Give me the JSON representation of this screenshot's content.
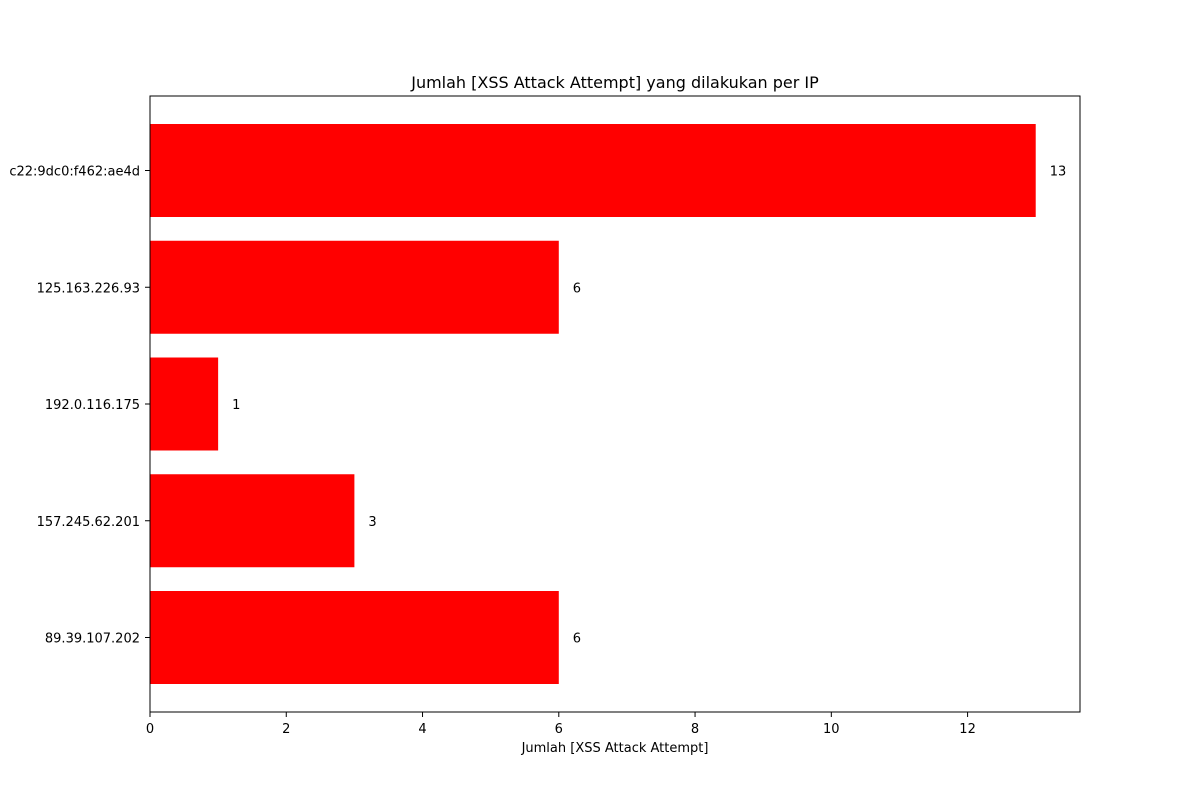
{
  "chart_data": {
    "type": "bar",
    "orientation": "horizontal",
    "title": "Jumlah [XSS Attack Attempt] yang dilakukan per IP",
    "xlabel": "Jumlah [XSS Attack Attempt]",
    "ylabel": "",
    "categories": [
      "c22:9dc0:f462:ae4d",
      "125.163.226.93",
      "192.0.116.175",
      "157.245.62.201",
      "89.39.107.202"
    ],
    "values": [
      13,
      6,
      1,
      3,
      6
    ],
    "data_labels": [
      "13",
      "6",
      "1",
      "3",
      "6"
    ],
    "xlim": [
      0,
      13.65
    ],
    "xticks": [
      0,
      2,
      4,
      6,
      8,
      10,
      12
    ],
    "xtick_labels": [
      "0",
      "2",
      "4",
      "6",
      "8",
      "10",
      "12"
    ],
    "grid": false,
    "legend": "none",
    "bar_color": "#ff0000"
  }
}
